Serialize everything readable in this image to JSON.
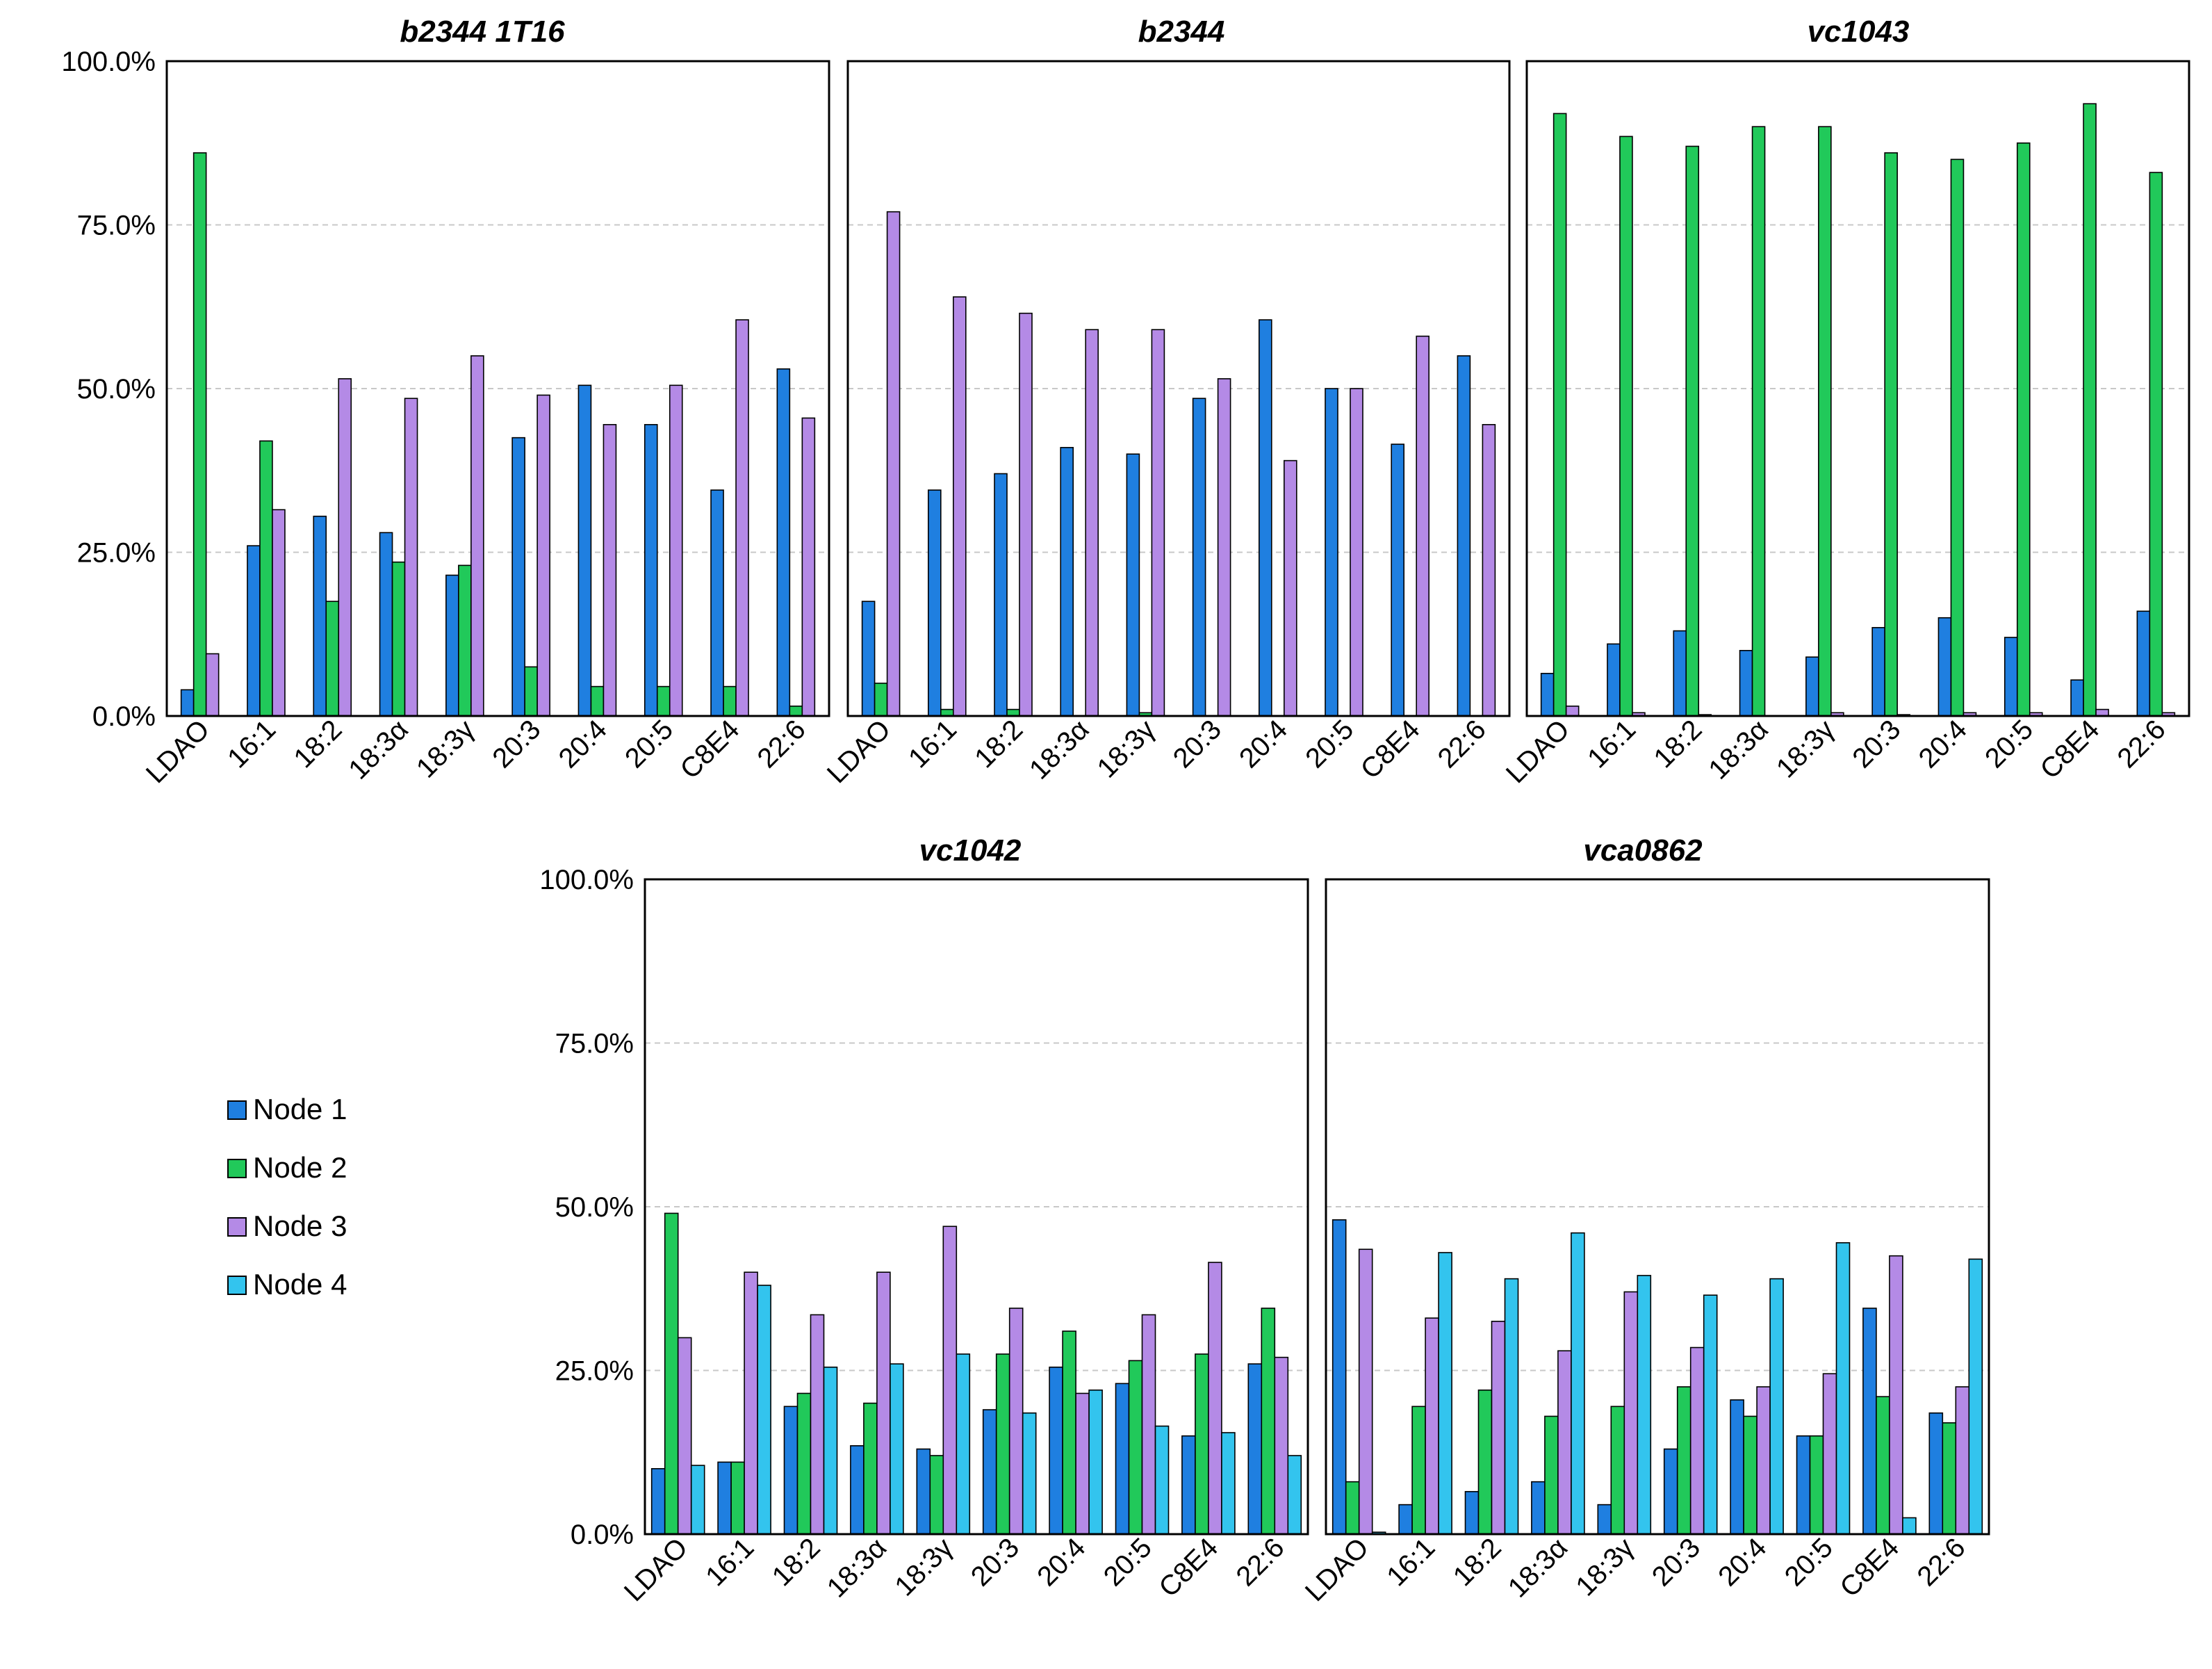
{
  "colors": {
    "Node 1": "#1f7fe0",
    "Node 2": "#21c95a",
    "Node 3": "#b48ae6",
    "Node 4": "#33c4ee"
  },
  "legend": [
    "Node 1",
    "Node 2",
    "Node 3",
    "Node 4"
  ],
  "chart_data": [
    {
      "type": "bar",
      "title": "b2344 1T16",
      "categories": [
        "LDAO",
        "16:1",
        "18:2",
        "18:3α",
        "18:3γ",
        "20:3",
        "20:4",
        "20:5",
        "C8E4",
        "22:6"
      ],
      "y_ticks": [
        "0.0%",
        "25.0%",
        "50.0%",
        "75.0%",
        "100.0%"
      ],
      "ylim": [
        0,
        100
      ],
      "grid": true,
      "series": [
        {
          "name": "Node 1",
          "values": [
            4,
            26,
            30.5,
            28,
            21.5,
            42.5,
            50.5,
            44.5,
            34.5,
            53
          ]
        },
        {
          "name": "Node 2",
          "values": [
            86,
            42,
            17.5,
            23.5,
            23,
            7.5,
            4.5,
            4.5,
            4.5,
            1.5
          ]
        },
        {
          "name": "Node 3",
          "values": [
            9.5,
            31.5,
            51.5,
            48.5,
            55,
            49,
            44.5,
            50.5,
            60.5,
            45.5
          ]
        }
      ]
    },
    {
      "type": "bar",
      "title": "b2344",
      "categories": [
        "LDAO",
        "16:1",
        "18:2",
        "18:3α",
        "18:3γ",
        "20:3",
        "20:4",
        "20:5",
        "C8E4",
        "22:6"
      ],
      "ylim": [
        0,
        100
      ],
      "grid": true,
      "series": [
        {
          "name": "Node 1",
          "values": [
            17.5,
            34.5,
            37,
            41,
            40,
            48.5,
            60.5,
            50,
            41.5,
            55
          ]
        },
        {
          "name": "Node 2",
          "values": [
            5,
            1,
            1,
            0,
            0.5,
            0,
            0,
            0,
            0,
            0
          ]
        },
        {
          "name": "Node 3",
          "values": [
            77,
            64,
            61.5,
            59,
            59,
            51.5,
            39,
            50,
            58,
            44.5
          ]
        }
      ]
    },
    {
      "type": "bar",
      "title": "vc1043",
      "categories": [
        "LDAO",
        "16:1",
        "18:2",
        "18:3α",
        "18:3γ",
        "20:3",
        "20:4",
        "20:5",
        "C8E4",
        "22:6"
      ],
      "ylim": [
        0,
        100
      ],
      "grid": true,
      "series": [
        {
          "name": "Node 1",
          "values": [
            6.5,
            11,
            13,
            10,
            9,
            13.5,
            15,
            12,
            5.5,
            16
          ]
        },
        {
          "name": "Node 2",
          "values": [
            92,
            88.5,
            87,
            90,
            90,
            86,
            85,
            87.5,
            93.5,
            83
          ]
        },
        {
          "name": "Node 3",
          "values": [
            1.5,
            0.5,
            0.2,
            0,
            0.5,
            0.2,
            0.5,
            0.5,
            1,
            0.5
          ]
        }
      ]
    },
    {
      "type": "bar",
      "title": "vc1042",
      "categories": [
        "LDAO",
        "16:1",
        "18:2",
        "18:3α",
        "18:3γ",
        "20:3",
        "20:4",
        "20:5",
        "C8E4",
        "22:6"
      ],
      "y_ticks": [
        "0.0%",
        "25.0%",
        "50.0%",
        "75.0%",
        "100.0%"
      ],
      "ylim": [
        0,
        100
      ],
      "grid": true,
      "series": [
        {
          "name": "Node 1",
          "values": [
            10,
            11,
            19.5,
            13.5,
            13,
            19,
            25.5,
            23,
            15,
            26
          ]
        },
        {
          "name": "Node 2",
          "values": [
            49,
            11,
            21.5,
            20,
            12,
            27.5,
            31,
            26.5,
            27.5,
            34.5
          ]
        },
        {
          "name": "Node 3",
          "values": [
            30,
            40,
            33.5,
            40,
            47,
            34.5,
            21.5,
            33.5,
            41.5,
            27
          ]
        },
        {
          "name": "Node 4",
          "values": [
            10.5,
            38,
            25.5,
            26,
            27.5,
            18.5,
            22,
            16.5,
            15.5,
            12
          ]
        }
      ]
    },
    {
      "type": "bar",
      "title": "vca0862",
      "categories": [
        "LDAO",
        "16:1",
        "18:2",
        "18:3α",
        "18:3γ",
        "20:3",
        "20:4",
        "20:5",
        "C8E4",
        "22:6"
      ],
      "ylim": [
        0,
        100
      ],
      "grid": true,
      "series": [
        {
          "name": "Node 1",
          "values": [
            48,
            4.5,
            6.5,
            8,
            4.5,
            13,
            20.5,
            15,
            34.5,
            18.5
          ]
        },
        {
          "name": "Node 2",
          "values": [
            8,
            19.5,
            22,
            18,
            19.5,
            22.5,
            18,
            15,
            21,
            17
          ]
        },
        {
          "name": "Node 3",
          "values": [
            43.5,
            33,
            32.5,
            28,
            37,
            28.5,
            22.5,
            24.5,
            42.5,
            22.5
          ]
        },
        {
          "name": "Node 4",
          "values": [
            0.3,
            43,
            39,
            46,
            39.5,
            36.5,
            39,
            44.5,
            2.5,
            42
          ]
        }
      ]
    }
  ]
}
